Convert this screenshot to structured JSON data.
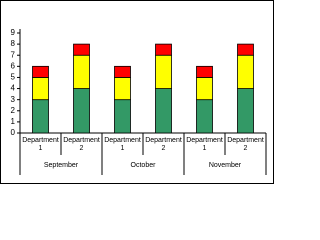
{
  "chart_data": {
    "type": "stacked_bar",
    "categories": [
      "Department 1",
      "Department 2",
      "Department 1",
      "Department 2",
      "Department 1",
      "Department 2"
    ],
    "groups": [
      "September",
      "October",
      "November"
    ],
    "series": [
      {
        "color": "#339966",
        "values": [
          3,
          4,
          3,
          4,
          3,
          4
        ]
      },
      {
        "color": "#ffff00",
        "values": [
          2,
          3,
          2,
          3,
          2,
          3
        ]
      },
      {
        "color": "#ff0000",
        "values": [
          1,
          1,
          1,
          1,
          1,
          1
        ]
      }
    ],
    "ylim": [
      0,
      9
    ],
    "yticks": [
      0,
      1,
      2,
      3,
      4,
      5,
      6,
      7,
      8,
      9
    ],
    "grid": false
  }
}
